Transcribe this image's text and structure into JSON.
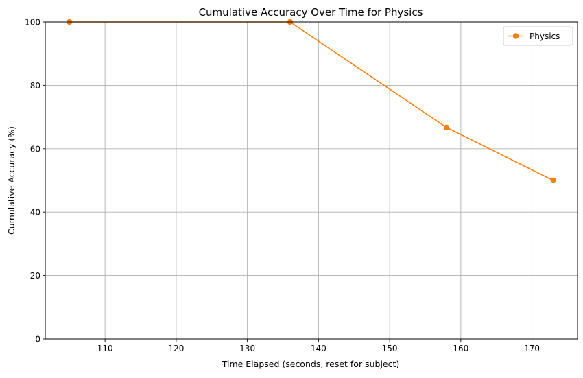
{
  "chart_data": {
    "type": "line",
    "title": "Cumulative Accuracy Over Time for Physics",
    "xlabel": "Time Elapsed (seconds, reset for subject)",
    "ylabel": "Cumulative Accuracy (%)",
    "xlim": [
      101.6,
      176.4
    ],
    "ylim": [
      0,
      100
    ],
    "xticks": [
      110,
      120,
      130,
      140,
      150,
      160,
      170
    ],
    "yticks": [
      0,
      20,
      40,
      60,
      80,
      100
    ],
    "grid": true,
    "legend_position": "top-right",
    "series": [
      {
        "name": "Physics",
        "color": "#ff7f0e",
        "marker": "circle",
        "points": [
          {
            "x": 105,
            "y": 100
          },
          {
            "x": 136,
            "y": 100
          },
          {
            "x": 158,
            "y": 66.7
          },
          {
            "x": 173,
            "y": 50
          }
        ]
      }
    ]
  }
}
